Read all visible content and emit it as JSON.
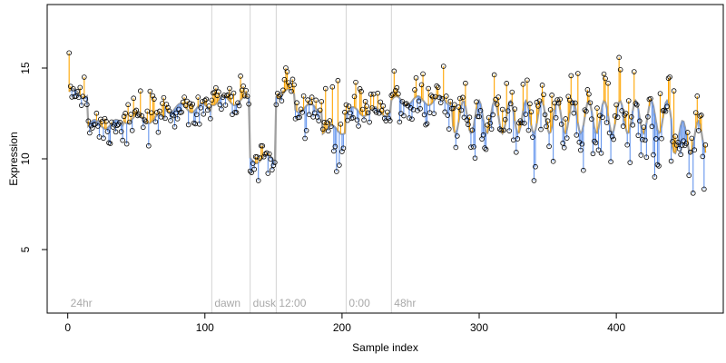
{
  "chart_data": {
    "type": "scatter",
    "title": "",
    "xlabel": "Sample index",
    "ylabel": "Expression",
    "xlim": [
      -15,
      478
    ],
    "ylim": [
      1.5,
      18.5
    ],
    "x_ticks": [
      0,
      100,
      200,
      300,
      400
    ],
    "x_tick_labels": [
      "0",
      "100",
      "200",
      "300",
      "400"
    ],
    "y_ticks": [
      5,
      10,
      15
    ],
    "y_tick_labels": [
      "5",
      "10",
      "15"
    ],
    "grid": false,
    "colors": {
      "above_fit": "#FFA500",
      "below_fit": "#6495ED",
      "fit_line": "#A0A0A0",
      "phase_line": "#D3D3D3",
      "phase_text": "#A9A9A9",
      "point_edge": "#000000"
    },
    "phase_markers": [
      {
        "x": 0,
        "label": "24hr"
      },
      {
        "x": 105,
        "label": "dawn"
      },
      {
        "x": 133,
        "label": "dusk"
      },
      {
        "x": 152,
        "label": "12:00"
      },
      {
        "x": 203,
        "label": "0:00"
      },
      {
        "x": 236,
        "label": "48hr"
      }
    ],
    "segments": [
      {
        "x_start": 1,
        "x_end": 14,
        "mean": 13.6,
        "sd": 0.55
      },
      {
        "x_start": 15,
        "x_end": 40,
        "mean": 11.9,
        "sd": 0.7
      },
      {
        "x_start": 41,
        "x_end": 70,
        "mean": 12.2,
        "sd": 0.6
      },
      {
        "x_start": 71,
        "x_end": 104,
        "mean": 12.8,
        "sd": 0.7
      },
      {
        "x_start": 105,
        "x_end": 132,
        "mean": 13.2,
        "sd": 0.4
      },
      {
        "x_start": 133,
        "x_end": 151,
        "mean": 10.0,
        "sd": 0.6
      },
      {
        "x_start": 152,
        "x_end": 165,
        "mean": 13.6,
        "sd": 0.5
      },
      {
        "x_start": 166,
        "x_end": 185,
        "mean": 12.8,
        "sd": 0.9
      },
      {
        "x_start": 186,
        "x_end": 202,
        "mean": 11.6,
        "sd": 1.2
      },
      {
        "x_start": 203,
        "x_end": 235,
        "mean": 12.6,
        "sd": 0.7
      },
      {
        "x_start": 236,
        "x_end": 280,
        "mean": 13.2,
        "sd": 0.8
      },
      {
        "x_start": 281,
        "x_end": 440,
        "mean": 12.3,
        "sd": 1.0
      },
      {
        "x_start": 441,
        "x_end": 465,
        "mean": 11.2,
        "sd": 1.1
      }
    ],
    "outliers": [
      {
        "x": 340,
        "y": 8.8
      },
      {
        "x": 139,
        "y": 8.8
      },
      {
        "x": 146,
        "y": 9.2
      },
      {
        "x": 196,
        "y": 9.3
      },
      {
        "x": 274,
        "y": 15.1
      },
      {
        "x": 12,
        "y": 14.5
      },
      {
        "x": 160,
        "y": 14.8
      },
      {
        "x": 372,
        "y": 14.7
      }
    ]
  }
}
